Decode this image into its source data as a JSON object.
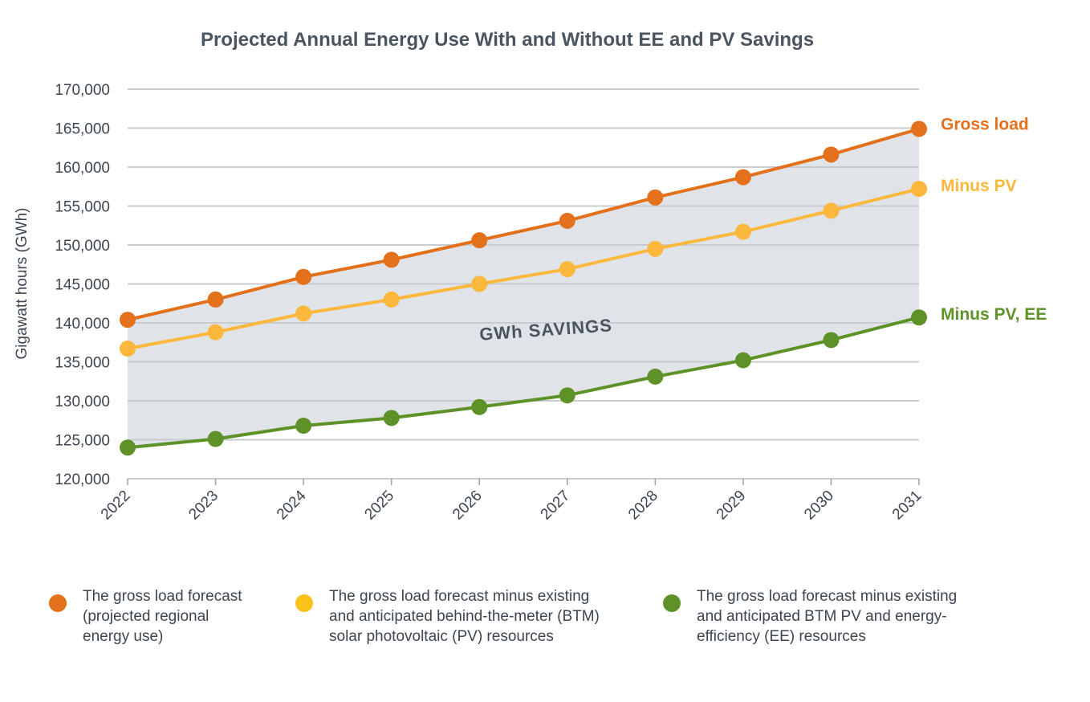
{
  "chart_data": {
    "type": "line",
    "title": "Projected Annual Energy Use With and Without EE and PV Savings",
    "ylabel": "Gigawatt hours (GWh)",
    "xlabel": "",
    "ylim": [
      120000,
      170000
    ],
    "y_ticks": [
      "120,000",
      "125,000",
      "130,000",
      "135,000",
      "140,000",
      "145,000",
      "150,000",
      "155,000",
      "160,000",
      "165,000",
      "170,000"
    ],
    "y_tick_values": [
      120000,
      125000,
      130000,
      135000,
      140000,
      145000,
      150000,
      155000,
      160000,
      165000,
      170000
    ],
    "categories": [
      "2022",
      "2023",
      "2024",
      "2025",
      "2026",
      "2027",
      "2028",
      "2029",
      "2030",
      "2031"
    ],
    "grid": true,
    "series": [
      {
        "name": "Gross load",
        "color": "#e3701a",
        "values": [
          140400,
          143000,
          145900,
          148100,
          150600,
          153100,
          156100,
          158700,
          161600,
          164900
        ]
      },
      {
        "name": "Minus PV",
        "color": "#fbb83c",
        "values": [
          136700,
          138800,
          141200,
          143000,
          145000,
          146900,
          149500,
          151700,
          154400,
          157200
        ]
      },
      {
        "name": "Minus PV, EE",
        "color": "#5e9229",
        "values": [
          124000,
          125100,
          126800,
          127800,
          129200,
          130700,
          133100,
          135200,
          137800,
          140700
        ]
      }
    ],
    "annotation": "GWh SAVINGS",
    "fill_color": "#e0e3e7"
  },
  "legend": [
    {
      "color": "#e3701a",
      "text": "The gross load forecast\n(projected regional\nenergy use)"
    },
    {
      "color": "#fcc01a",
      "text": "The gross load forecast minus existing\nand anticipated behind-the-meter (BTM)\nsolar photovoltaic (PV) resources"
    },
    {
      "color": "#5e9229",
      "text": "The gross load forecast minus existing\nand anticipated BTM PV and energy-\nefficiency (EE) resources"
    }
  ]
}
